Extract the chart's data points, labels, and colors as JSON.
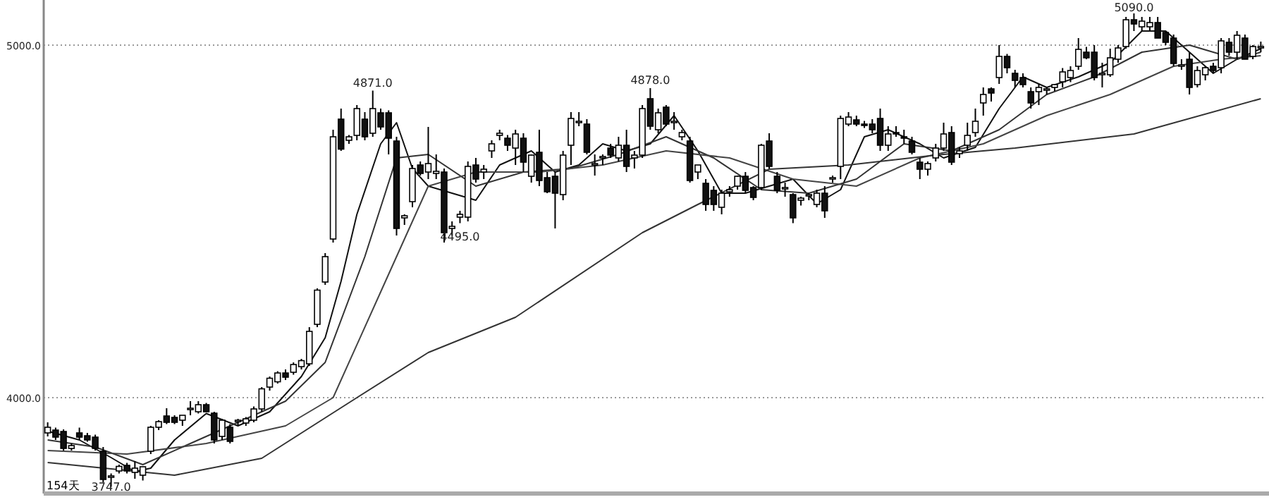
{
  "chart_data": {
    "type": "candlestick",
    "categories": [
      null,
      null,
      null,
      null,
      null,
      null,
      null,
      null,
      null,
      null,
      null,
      null,
      null,
      null,
      null,
      null,
      null,
      null,
      null,
      null,
      null,
      null,
      null,
      null,
      null,
      null,
      null,
      null,
      null,
      null,
      null,
      null,
      null,
      null,
      null,
      null,
      null,
      null,
      null,
      null,
      null,
      null,
      null,
      null,
      null,
      null,
      null,
      null,
      null,
      null,
      null,
      null,
      null,
      null,
      null,
      null,
      null,
      null,
      null,
      null,
      null,
      null,
      null,
      null,
      null,
      null,
      null,
      null,
      null,
      null,
      null,
      null,
      null,
      null,
      null,
      null,
      null,
      null,
      null,
      null,
      null,
      null,
      null,
      null,
      null,
      null,
      null,
      null,
      null,
      null,
      null,
      null,
      null,
      null,
      null,
      null,
      null,
      null,
      null,
      null,
      null,
      null,
      null,
      null,
      null,
      null,
      null,
      null,
      null,
      null,
      null,
      null,
      null,
      null,
      null,
      null,
      null,
      null,
      null,
      null,
      null,
      null,
      null,
      null,
      null,
      null,
      null,
      null,
      null,
      null,
      null,
      null,
      null,
      null,
      null,
      null,
      null,
      null,
      null,
      null,
      null,
      null,
      null,
      null,
      null,
      null,
      null,
      null,
      null,
      null,
      null,
      null,
      null,
      null
    ],
    "ohlc": [
      [
        3900,
        3930,
        3890,
        3916
      ],
      [
        3908,
        3915,
        3880,
        3888
      ],
      [
        3904,
        3910,
        3850,
        3856
      ],
      [
        3856,
        3870,
        3850,
        3864
      ],
      [
        3900,
        3915,
        3880,
        3888
      ],
      [
        3892,
        3900,
        3875,
        3880
      ],
      [
        3888,
        3895,
        3850,
        3856
      ],
      [
        3848,
        3860,
        3760,
        3768
      ],
      [
        3774,
        3785,
        3747,
        3778
      ],
      [
        3792,
        3810,
        3785,
        3805
      ],
      [
        3808,
        3815,
        3785,
        3792
      ],
      [
        3788,
        3820,
        3770,
        3800
      ],
      [
        3780,
        3805,
        3765,
        3804
      ],
      [
        3848,
        3920,
        3840,
        3916
      ],
      [
        3916,
        3936,
        3908,
        3932
      ],
      [
        3948,
        3970,
        3925,
        3930
      ],
      [
        3944,
        3950,
        3925,
        3930
      ],
      [
        3936,
        3950,
        3920,
        3950
      ],
      [
        3966,
        3990,
        3950,
        3970
      ],
      [
        3960,
        3990,
        3955,
        3980
      ],
      [
        3980,
        3985,
        3960,
        3960
      ],
      [
        3956,
        3960,
        3870,
        3880
      ],
      [
        3890,
        3940,
        3880,
        3936
      ],
      [
        3916,
        3925,
        3870,
        3876
      ],
      [
        3932,
        3940,
        3920,
        3936
      ],
      [
        3928,
        3945,
        3920,
        3940
      ],
      [
        3936,
        3975,
        3930,
        3968
      ],
      [
        3968,
        4030,
        3960,
        4025
      ],
      [
        4030,
        4060,
        4020,
        4055
      ],
      [
        4045,
        4075,
        4040,
        4070
      ],
      [
        4070,
        4080,
        4050,
        4058
      ],
      [
        4072,
        4100,
        4065,
        4094
      ],
      [
        4088,
        4110,
        4080,
        4105
      ],
      [
        4096,
        4200,
        4090,
        4188
      ],
      [
        4208,
        4310,
        4200,
        4305
      ],
      [
        4328,
        4410,
        4320,
        4400
      ],
      [
        4450,
        4760,
        4440,
        4740
      ],
      [
        4790,
        4820,
        4700,
        4705
      ],
      [
        4730,
        4745,
        4720,
        4740
      ],
      [
        4744,
        4830,
        4730,
        4820
      ],
      [
        4790,
        4810,
        4730,
        4740
      ],
      [
        4750,
        4871,
        4740,
        4820
      ],
      [
        4808,
        4820,
        4760,
        4768
      ],
      [
        4808,
        4815,
        4690,
        4736
      ],
      [
        4728,
        4740,
        4460,
        4480
      ],
      [
        4510,
        4520,
        4490,
        4516
      ],
      [
        4556,
        4660,
        4540,
        4650
      ],
      [
        4660,
        4670,
        4630,
        4636
      ],
      [
        4640,
        4768,
        4620,
        4664
      ],
      [
        4636,
        4690,
        4620,
        4642
      ],
      [
        4640,
        4650,
        4440,
        4468
      ],
      [
        4480,
        4500,
        4460,
        4486
      ],
      [
        4512,
        4530,
        4495,
        4520
      ],
      [
        4512,
        4670,
        4500,
        4656
      ],
      [
        4660,
        4680,
        4610,
        4620
      ],
      [
        4640,
        4660,
        4620,
        4648
      ],
      [
        4700,
        4730,
        4680,
        4720
      ],
      [
        4744,
        4760,
        4730,
        4750
      ],
      [
        4736,
        4745,
        4700,
        4716
      ],
      [
        4708,
        4760,
        4660,
        4748
      ],
      [
        4736,
        4750,
        4640,
        4668
      ],
      [
        4628,
        4690,
        4610,
        4688
      ],
      [
        4696,
        4760,
        4600,
        4616
      ],
      [
        4624,
        4640,
        4580,
        4584
      ],
      [
        4628,
        4640,
        4480,
        4580
      ],
      [
        4576,
        4700,
        4560,
        4688
      ],
      [
        4716,
        4810,
        4660,
        4792
      ],
      [
        4780,
        4810,
        4770,
        4784
      ],
      [
        4776,
        4790,
        4690,
        4696
      ],
      [
        4660,
        4690,
        4630,
        4664
      ],
      [
        4680,
        4690,
        4660,
        4684
      ],
      [
        4708,
        4720,
        4680,
        4688
      ],
      [
        4680,
        4740,
        4670,
        4716
      ],
      [
        4716,
        4760,
        4640,
        4656
      ],
      [
        4680,
        4700,
        4650,
        4688
      ],
      [
        4688,
        4830,
        4680,
        4820
      ],
      [
        4848,
        4878,
        4760,
        4770
      ],
      [
        4760,
        4820,
        4750,
        4808
      ],
      [
        4824,
        4830,
        4770,
        4776
      ],
      [
        4780,
        4810,
        4760,
        4784
      ],
      [
        4740,
        4760,
        4730,
        4752
      ],
      [
        4728,
        4740,
        4610,
        4616
      ],
      [
        4640,
        4660,
        4620,
        4660
      ],
      [
        4608,
        4620,
        4530,
        4548
      ],
      [
        4588,
        4600,
        4530,
        4548
      ],
      [
        4540,
        4590,
        4520,
        4580
      ],
      [
        4584,
        4600,
        4570,
        4590
      ],
      [
        4600,
        4630,
        4590,
        4628
      ],
      [
        4628,
        4640,
        4580,
        4588
      ],
      [
        4596,
        4600,
        4560,
        4568
      ],
      [
        4596,
        4720,
        4590,
        4716
      ],
      [
        4728,
        4750,
        4650,
        4656
      ],
      [
        4628,
        4640,
        4580,
        4588
      ],
      [
        4592,
        4610,
        4570,
        4596
      ],
      [
        4576,
        4580,
        4495,
        4510
      ],
      [
        4560,
        4570,
        4545,
        4566
      ],
      [
        4572,
        4580,
        4560,
        4576
      ],
      [
        4548,
        4590,
        4540,
        4580
      ],
      [
        4580,
        4600,
        4510,
        4530
      ],
      [
        4620,
        4630,
        4610,
        4624
      ],
      [
        4656,
        4800,
        4620,
        4792
      ],
      [
        4776,
        4810,
        4770,
        4796
      ],
      [
        4788,
        4800,
        4770,
        4776
      ],
      [
        4776,
        4785,
        4765,
        4772
      ],
      [
        4776,
        4790,
        4750,
        4760
      ],
      [
        4792,
        4820,
        4700,
        4716
      ],
      [
        4716,
        4770,
        4700,
        4748
      ],
      [
        4752,
        4770,
        4740,
        4748
      ],
      [
        4740,
        4760,
        4720,
        4736
      ],
      [
        4728,
        4740,
        4690,
        4696
      ],
      [
        4668,
        4680,
        4620,
        4648
      ],
      [
        4648,
        4670,
        4630,
        4664
      ],
      [
        4680,
        4720,
        4670,
        4708
      ],
      [
        4708,
        4780,
        4700,
        4748
      ],
      [
        4752,
        4770,
        4660,
        4668
      ],
      [
        4692,
        4710,
        4680,
        4700
      ],
      [
        4716,
        4780,
        4700,
        4744
      ],
      [
        4752,
        4820,
        4740,
        4784
      ],
      [
        4836,
        4880,
        4800,
        4860
      ],
      [
        4876,
        4880,
        4840,
        4864
      ],
      [
        4908,
        5000,
        4890,
        4968
      ],
      [
        4968,
        4975,
        4920,
        4936
      ],
      [
        4920,
        4930,
        4880,
        4900
      ],
      [
        4908,
        4920,
        4880,
        4888
      ],
      [
        4868,
        4880,
        4820,
        4836
      ],
      [
        4868,
        4890,
        4830,
        4880
      ],
      [
        4872,
        4880,
        4860,
        4876
      ],
      [
        4880,
        4890,
        4870,
        4888
      ],
      [
        4896,
        4935,
        4880,
        4924
      ],
      [
        4908,
        4940,
        4895,
        4928
      ],
      [
        4940,
        5020,
        4930,
        4988
      ],
      [
        4980,
        4995,
        4960,
        4964
      ],
      [
        4980,
        5000,
        4900,
        4908
      ],
      [
        4916,
        4950,
        4880,
        4920
      ],
      [
        4916,
        4990,
        4910,
        4964
      ],
      [
        4960,
        5000,
        4950,
        4992
      ],
      [
        4996,
        5080,
        4990,
        5072
      ],
      [
        5072,
        5090,
        5040,
        5060
      ],
      [
        5052,
        5080,
        5040,
        5068
      ],
      [
        5052,
        5080,
        5040,
        5064
      ],
      [
        5064,
        5080,
        5020,
        5020
      ],
      [
        5036,
        5040,
        5000,
        5008
      ],
      [
        5020,
        5030,
        4940,
        4948
      ],
      [
        4940,
        4960,
        4930,
        4944
      ],
      [
        4960,
        4980,
        4860,
        4880
      ],
      [
        4888,
        4940,
        4880,
        4928
      ],
      [
        4916,
        4940,
        4900,
        4936
      ],
      [
        4940,
        4950,
        4920,
        4928
      ],
      [
        4936,
        5020,
        4920,
        5012
      ],
      [
        5008,
        5020,
        4970,
        4980
      ],
      [
        4980,
        5040,
        4960,
        5028
      ],
      [
        5020,
        5030,
        4960,
        4960
      ],
      [
        4968,
        5000,
        4960,
        4996
      ],
      [
        4992,
        5010,
        4980,
        4996
      ]
    ],
    "series": [
      {
        "type": "line",
        "color": "#111111",
        "values": [
          3905,
          null,
          null,
          null,
          3880,
          null,
          null,
          null,
          3830,
          null,
          null,
          3790,
          null,
          3800,
          null,
          null,
          3880,
          null,
          null,
          null,
          3955,
          null,
          null,
          null,
          3920,
          null,
          null,
          null,
          3960,
          null,
          null,
          null,
          4060,
          null,
          null,
          4170,
          null,
          4330,
          null,
          4520,
          null,
          null,
          4720,
          null,
          4780,
          null,
          4650,
          null,
          4600,
          null,
          null,
          4580,
          null,
          null,
          4560,
          null,
          null,
          4660,
          null,
          null,
          null,
          4700,
          null,
          null,
          4640,
          null,
          null,
          4660,
          null,
          null,
          4720,
          null,
          null,
          4700,
          null,
          null,
          4720,
          null,
          null,
          4800,
          null,
          null,
          4700,
          null,
          null,
          4580,
          null,
          null,
          4580,
          null,
          null,
          4600,
          null,
          null,
          4620,
          null,
          null,
          4550,
          null,
          null,
          4590,
          null,
          null,
          4740,
          null,
          null,
          4760,
          null,
          null,
          null,
          4720,
          null,
          null,
          4680,
          null,
          null,
          null,
          4710,
          null,
          null,
          4820,
          null,
          null,
          4910,
          null,
          null,
          4880,
          null,
          null,
          null,
          4910,
          null,
          null,
          null,
          4950,
          null,
          null,
          null,
          5040,
          null,
          null,
          5040,
          null,
          null,
          4980,
          null,
          null,
          4920,
          null,
          null,
          4960,
          null,
          null,
          4990
        ]
      },
      {
        "type": "line",
        "color": "#333333",
        "values": [
          3880,
          null,
          null,
          null,
          null,
          null,
          3860,
          null,
          null,
          null,
          null,
          null,
          3810,
          null,
          null,
          null,
          null,
          null,
          3870,
          null,
          null,
          null,
          null,
          null,
          3930,
          null,
          null,
          null,
          null,
          null,
          3990,
          null,
          null,
          null,
          null,
          4100,
          null,
          null,
          null,
          null,
          4400,
          null,
          null,
          null,
          4680,
          null,
          null,
          null,
          4690,
          null,
          null,
          null,
          null,
          null,
          4600,
          null,
          null,
          null,
          null,
          null,
          4640,
          null,
          null,
          null,
          null,
          null,
          4650,
          null,
          null,
          null,
          null,
          null,
          4690,
          null,
          null,
          null,
          null,
          null,
          4740,
          null,
          null,
          null,
          null,
          null,
          4680,
          null,
          null,
          null,
          null,
          null,
          4590,
          null,
          null,
          null,
          null,
          null,
          4580,
          null,
          null,
          null,
          null,
          null,
          4620,
          null,
          null,
          null,
          null,
          null,
          4720,
          null,
          null,
          null,
          null,
          null,
          4700,
          null,
          null,
          null,
          null,
          null,
          4760,
          null,
          null,
          null,
          null,
          null,
          4860,
          null,
          null,
          null,
          null,
          null,
          4910,
          null,
          null,
          null,
          null,
          null,
          4980,
          null,
          null,
          null,
          null,
          null,
          5000,
          null,
          null,
          null,
          null,
          null,
          4960,
          null,
          null,
          4980
        ]
      },
      {
        "type": "line",
        "color": "#444444",
        "values": [
          3850,
          null,
          null,
          null,
          null,
          null,
          null,
          null,
          null,
          null,
          3840,
          null,
          null,
          null,
          null,
          null,
          null,
          null,
          null,
          null,
          3870,
          null,
          null,
          null,
          null,
          null,
          null,
          null,
          null,
          null,
          3920,
          null,
          null,
          null,
          null,
          null,
          4000,
          null,
          null,
          null,
          null,
          null,
          4300,
          null,
          null,
          null,
          null,
          null,
          4600,
          null,
          null,
          null,
          null,
          null,
          4640,
          null,
          null,
          null,
          null,
          null,
          null,
          null,
          4640,
          null,
          null,
          null,
          null,
          null,
          null,
          null,
          4660,
          null,
          null,
          null,
          null,
          null,
          null,
          null,
          4700,
          null,
          null,
          null,
          null,
          null,
          null,
          null,
          4680,
          null,
          null,
          null,
          null,
          null,
          null,
          null,
          4620,
          null,
          null,
          null,
          null,
          null,
          null,
          null,
          4600,
          null,
          null,
          null,
          null,
          null,
          null,
          null,
          4680,
          null,
          null,
          null,
          null,
          null,
          null,
          null,
          4720,
          null,
          null,
          null,
          null,
          null,
          null,
          null,
          4800,
          null,
          null,
          null,
          null,
          null,
          null,
          null,
          4860,
          null,
          null,
          null,
          null,
          null,
          null,
          null,
          4940,
          null,
          null,
          null,
          null,
          null,
          4960,
          null,
          null,
          null,
          null,
          4970
        ]
      },
      {
        "type": "line",
        "color": "#333333",
        "values": [
          3816,
          null,
          null,
          null,
          null,
          null,
          null,
          null,
          null,
          null,
          null,
          null,
          null,
          null,
          null,
          null,
          3780,
          null,
          null,
          null,
          null,
          null,
          null,
          null,
          null,
          null,
          null,
          3828,
          null,
          null,
          null,
          null,
          null,
          null,
          null,
          null,
          null,
          null,
          null,
          4000,
          null,
          null,
          null,
          null,
          null,
          null,
          null,
          null,
          4128,
          null,
          null,
          null,
          null,
          null,
          null,
          null,
          null,
          null,
          null,
          4228,
          null,
          null,
          null,
          null,
          null,
          null,
          null,
          null,
          null,
          null,
          null,
          null,
          null,
          null,
          null,
          4468,
          null,
          null,
          null,
          null,
          null,
          null,
          4548,
          null,
          null,
          null,
          null,
          null,
          null,
          null,
          null,
          4648,
          null,
          null,
          null,
          null,
          null,
          null,
          null,
          null,
          null,
          4660,
          null,
          null,
          null,
          null,
          null,
          null,
          null,
          null,
          null,
          null,
          4688,
          null,
          null,
          null,
          null,
          null,
          null,
          null,
          null,
          null,
          4708,
          null,
          null,
          null,
          null,
          null,
          null,
          null,
          null,
          null,
          null,
          null,
          null,
          null,
          null,
          4748,
          null,
          null,
          null,
          null,
          null,
          null,
          null,
          null,
          null,
          null,
          null,
          null,
          null,
          null,
          null,
          4848
        ]
      }
    ],
    "ylim": [
      3728,
      5128
    ],
    "yticks": [
      {
        "value": 5000,
        "label": "5000.0"
      },
      {
        "value": 4000,
        "label": "4000.0"
      }
    ],
    "grid": "y",
    "tick_labels": "y",
    "annotations": [
      {
        "text": "4871.0",
        "y": 4871
      },
      {
        "text": "4878.0",
        "y": 4878
      },
      {
        "text": "4495.0",
        "y": 4495
      },
      {
        "text": "5090.0",
        "y": 5090
      },
      {
        "text": "3747.0",
        "y": 3747
      },
      "154天"
    ]
  }
}
